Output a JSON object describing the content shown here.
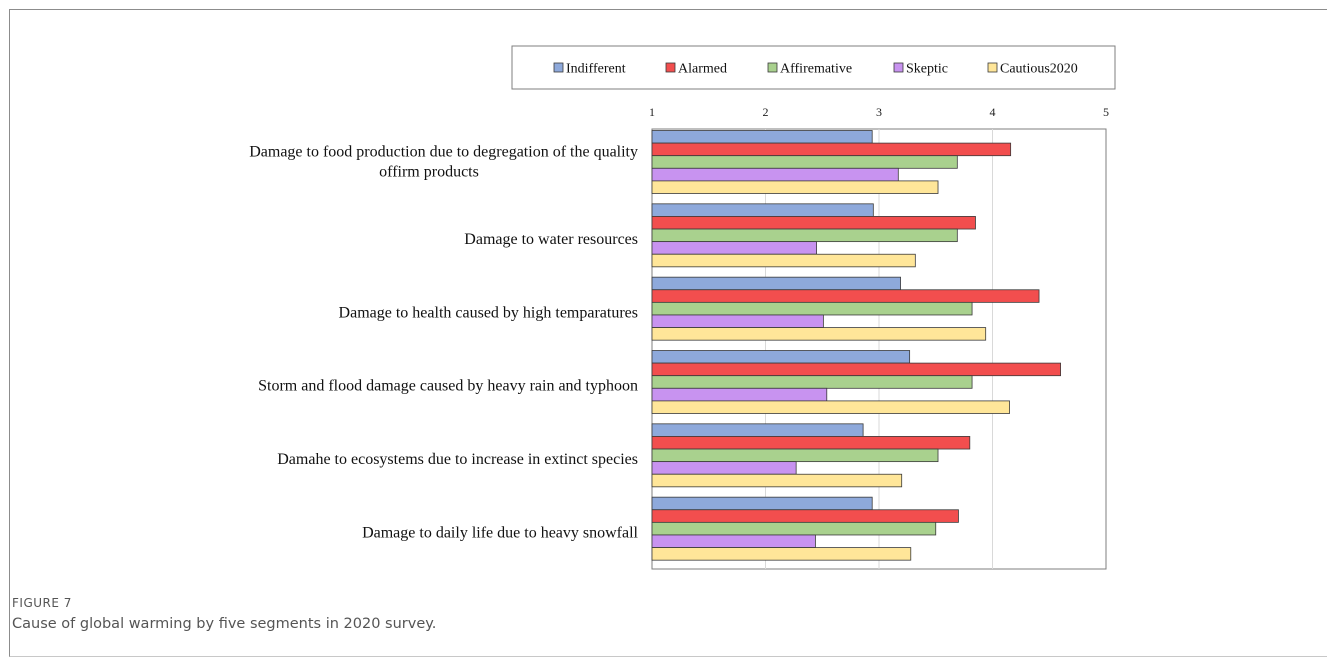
{
  "figure": {
    "label": "FIGURE 7",
    "caption": "Cause of global warming by five segments in 2020 survey."
  },
  "chart_data": {
    "type": "bar",
    "orientation": "horizontal",
    "categories": [
      [
        "Damage to food production due to degregation of the quality",
        "offirm products"
      ],
      [
        "Damage  to water resources"
      ],
      [
        "Damage to health caused by high temparatures"
      ],
      [
        "Storm and flood damage caused by heavy rain and typhoon"
      ],
      [
        "Damahe to ecosystems due to increase in extinct species"
      ],
      [
        "Damage to daily life due to heavy snowfall"
      ]
    ],
    "series": [
      {
        "name": "Indifferent",
        "color": "#8EA9DB",
        "values": [
          2.94,
          2.95,
          3.19,
          3.27,
          2.86,
          2.94
        ]
      },
      {
        "name": "Alarmed",
        "color": "#F24E4E",
        "values": [
          4.16,
          3.85,
          4.41,
          4.6,
          3.8,
          3.7
        ]
      },
      {
        "name": "Affiremative",
        "color": "#A9D18E",
        "values": [
          3.69,
          3.69,
          3.82,
          3.82,
          3.52,
          3.5
        ]
      },
      {
        "name": "Skeptic",
        "color": "#C893F0",
        "values": [
          3.17,
          2.45,
          2.51,
          2.54,
          2.27,
          2.44
        ]
      },
      {
        "name": "Cautious2020",
        "color": "#FFE699",
        "values": [
          3.52,
          3.32,
          3.94,
          4.15,
          3.2,
          3.28
        ]
      }
    ],
    "xlim": [
      1,
      5
    ],
    "xticks": [
      "1",
      "2",
      "3",
      "4",
      "5"
    ],
    "xaxis_position": "top",
    "legend_position": "top",
    "grid": true
  }
}
